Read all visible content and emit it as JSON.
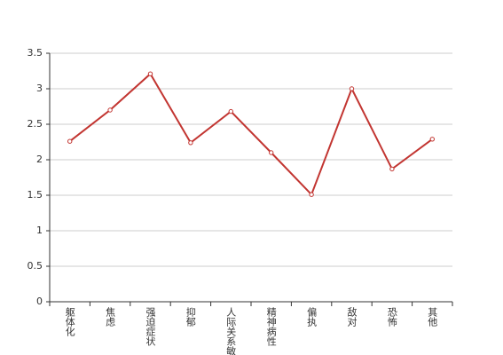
{
  "chart_data": {
    "type": "line",
    "categories": [
      "躯体化",
      "焦虑",
      "强迫症状",
      "抑郁",
      "人际关系敏感",
      "精神病性",
      "偏执",
      "敌对",
      "恐怖",
      "其他"
    ],
    "series": [
      {
        "color": "#c23531",
        "values": [
          2.26,
          2.7,
          3.21,
          2.24,
          2.68,
          2.1,
          1.51,
          3.0,
          1.87,
          2.29
        ]
      }
    ],
    "ylim": [
      0,
      3.5
    ],
    "yticks": [
      0,
      0.5,
      1,
      1.5,
      2,
      2.5,
      3,
      3.5
    ],
    "grid": true
  }
}
